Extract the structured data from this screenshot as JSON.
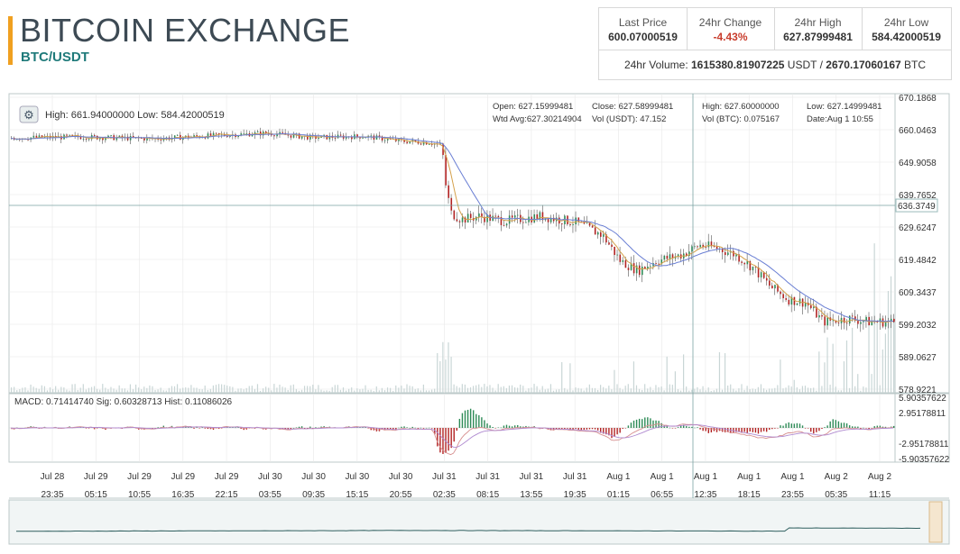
{
  "header": {
    "title": "BITCOIN EXCHANGE",
    "pair": "BTC/USDT",
    "stats": [
      {
        "label": "Last Price",
        "value": "600.07000519",
        "negative": false
      },
      {
        "label": "24hr Change",
        "value": "-4.43%",
        "negative": true
      },
      {
        "label": "24hr High",
        "value": "627.87999481",
        "negative": false
      },
      {
        "label": "24hr Low",
        "value": "584.42000519",
        "negative": false
      }
    ],
    "volume": {
      "prefix": "24hr Volume:",
      "usdt_value": "1615380.81907225",
      "usdt_unit": "USDT",
      "sep": "/",
      "btc_value": "2670.17060167",
      "btc_unit": "BTC"
    }
  },
  "chart_data": {
    "type": "candlestick",
    "accent_colors": {
      "up": "#2e8b57",
      "down": "#b22222",
      "ma_fast": "#d4a04a",
      "ma_slow": "#6a7fd4",
      "volume": "#c9d6d6",
      "grid": "#e8e8e8",
      "crosshair": "#7aa3a3"
    },
    "price_info": {
      "high_label": "High:",
      "high": "661.94000000",
      "low_label": "Low:",
      "low": "584.42000519",
      "open_label": "Open:",
      "open": "627.15999481",
      "close_label": "Close:",
      "close": "627.58999481",
      "high2_label": "High:",
      "high2": "627.60000000",
      "low2_label": "Low:",
      "low2": "627.14999481",
      "wavg_label": "Wtd Avg:",
      "wavg": "627.30214904",
      "volusdt_label": "Vol (USDT):",
      "volusdt": "47.152",
      "volbtc_label": "Vol (BTC):",
      "volbtc": "0.075167",
      "date_label": "Date:",
      "date": "Aug 1 10:55"
    },
    "y_ticks": [
      "670.1868",
      "660.0463",
      "649.9058",
      "639.7652",
      "629.6247",
      "619.4842",
      "609.3437",
      "599.2032",
      "589.0627",
      "578.9221"
    ],
    "ylim": [
      578.9221,
      670.1868
    ],
    "crosshair_price": "636.3749",
    "x_ticks": [
      {
        "d": "Jul 28",
        "t": "23:35"
      },
      {
        "d": "Jul 29",
        "t": "05:15"
      },
      {
        "d": "Jul 29",
        "t": "10:55"
      },
      {
        "d": "Jul 29",
        "t": "16:35"
      },
      {
        "d": "Jul 29",
        "t": "22:15"
      },
      {
        "d": "Jul 30",
        "t": "03:55"
      },
      {
        "d": "Jul 30",
        "t": "09:35"
      },
      {
        "d": "Jul 30",
        "t": "15:15"
      },
      {
        "d": "Jul 30",
        "t": "20:55"
      },
      {
        "d": "Jul 31",
        "t": "02:35"
      },
      {
        "d": "Jul 31",
        "t": "08:15"
      },
      {
        "d": "Jul 31",
        "t": "13:55"
      },
      {
        "d": "Jul 31",
        "t": "19:35"
      },
      {
        "d": "Aug 1",
        "t": "01:15"
      },
      {
        "d": "Aug 1",
        "t": "06:55"
      },
      {
        "d": "Aug 1",
        "t": "12:35"
      },
      {
        "d": "Aug 1",
        "t": "18:15"
      },
      {
        "d": "Aug 1",
        "t": "23:55"
      },
      {
        "d": "Aug 2",
        "t": "05:35"
      },
      {
        "d": "Aug 2",
        "t": "11:15"
      }
    ],
    "price_path": [
      [
        0,
        657.5
      ],
      [
        0.08,
        657.8
      ],
      [
        0.16,
        657.2
      ],
      [
        0.24,
        658.4
      ],
      [
        0.29,
        659.0
      ],
      [
        0.34,
        657.6
      ],
      [
        0.4,
        658.0
      ],
      [
        0.44,
        656.5
      ],
      [
        0.475,
        656.0
      ],
      [
        0.488,
        655.0
      ],
      [
        0.492,
        643
      ],
      [
        0.498,
        634
      ],
      [
        0.51,
        632
      ],
      [
        0.53,
        633
      ],
      [
        0.56,
        631.5
      ],
      [
        0.6,
        633
      ],
      [
        0.64,
        631
      ],
      [
        0.67,
        627
      ],
      [
        0.69,
        619
      ],
      [
        0.71,
        616
      ],
      [
        0.73,
        619
      ],
      [
        0.76,
        621
      ],
      [
        0.78,
        624
      ],
      [
        0.8,
        623
      ],
      [
        0.82,
        621
      ],
      [
        0.84,
        617
      ],
      [
        0.86,
        611
      ],
      [
        0.88,
        607
      ],
      [
        0.9,
        606
      ],
      [
        0.92,
        600
      ],
      [
        0.95,
        601
      ],
      [
        0.97,
        600
      ],
      [
        1.0,
        600
      ]
    ],
    "macd": {
      "macd_label": "MACD:",
      "macd": "0.71414740",
      "sig_label": "Sig:",
      "sig": "0.60328713",
      "hist_label": "Hist:",
      "hist": "0.11086026",
      "y_ticks": [
        "5.90357622",
        "2.95178811",
        "-2.95178811",
        "-5.90357622"
      ],
      "ylim": [
        -5.90357622,
        5.90357622
      ]
    }
  }
}
